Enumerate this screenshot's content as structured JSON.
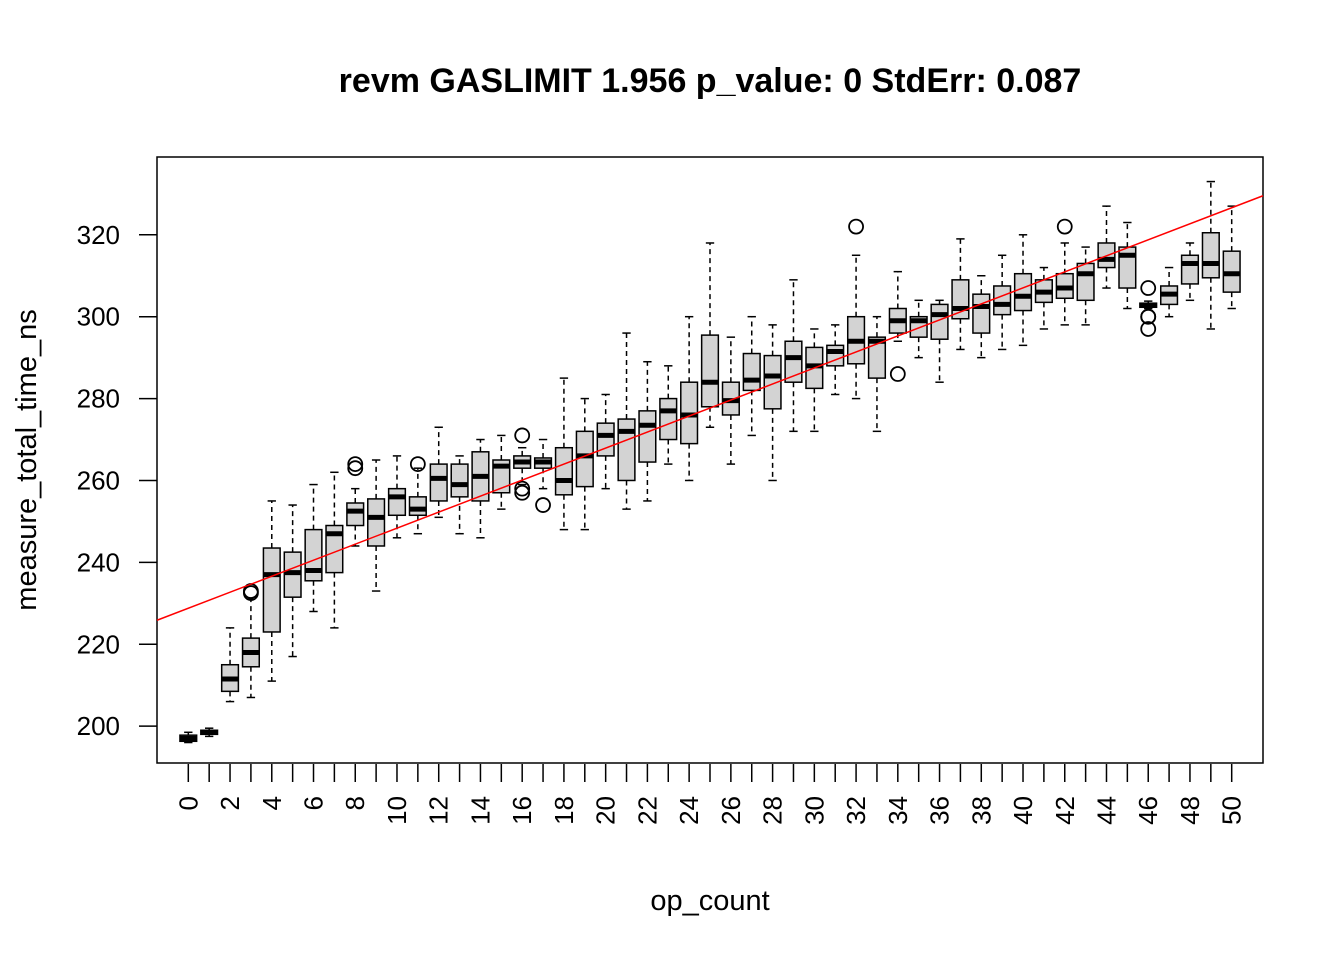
{
  "chart_data": {
    "type": "box",
    "title": "revm GASLIMIT 1.956 p_value: 0 StdErr: 0.087",
    "xlabel": "op_count",
    "ylabel": "measure_total_time_ns",
    "categories": [
      0,
      1,
      2,
      3,
      4,
      5,
      6,
      7,
      8,
      9,
      10,
      11,
      12,
      13,
      14,
      15,
      16,
      17,
      18,
      19,
      20,
      21,
      22,
      23,
      24,
      25,
      26,
      27,
      28,
      29,
      30,
      31,
      32,
      33,
      34,
      35,
      36,
      37,
      38,
      39,
      40,
      41,
      42,
      43,
      44,
      45,
      46,
      47,
      48,
      49,
      50
    ],
    "x_tick_labels": [
      "0",
      "2",
      "4",
      "6",
      "8",
      "10",
      "12",
      "14",
      "16",
      "18",
      "20",
      "22",
      "24",
      "26",
      "28",
      "30",
      "32",
      "34",
      "36",
      "38",
      "40",
      "42",
      "44",
      "46",
      "48",
      "50"
    ],
    "y_ticks": [
      200,
      220,
      240,
      260,
      280,
      300,
      320
    ],
    "ylim": [
      191,
      339
    ],
    "xlim": [
      -1.5,
      51.5
    ],
    "box_fill": "#d3d3d3",
    "regression_color": "#ff0000",
    "regression": {
      "slope": 1.956,
      "intercept": 228.8
    },
    "boxes": [
      {
        "x": 0,
        "wl": 196,
        "q1": 196.3,
        "med": 197,
        "q3": 197.8,
        "wh": 198.5,
        "out": []
      },
      {
        "x": 1,
        "wl": 197.5,
        "q1": 198,
        "med": 198.5,
        "q3": 199,
        "wh": 199.5,
        "out": []
      },
      {
        "x": 2,
        "wl": 206,
        "q1": 208.5,
        "med": 211.5,
        "q3": 215,
        "wh": 224,
        "out": []
      },
      {
        "x": 3,
        "wl": 207,
        "q1": 214.5,
        "med": 218,
        "q3": 221.5,
        "wh": 231,
        "out": [
          233,
          232.5
        ]
      },
      {
        "x": 4,
        "wl": 211,
        "q1": 223,
        "med": 237,
        "q3": 243.5,
        "wh": 255,
        "out": []
      },
      {
        "x": 5,
        "wl": 217,
        "q1": 231.5,
        "med": 237.5,
        "q3": 242.5,
        "wh": 254,
        "out": []
      },
      {
        "x": 6,
        "wl": 228,
        "q1": 235.5,
        "med": 238,
        "q3": 248,
        "wh": 259,
        "out": []
      },
      {
        "x": 7,
        "wl": 224,
        "q1": 237.5,
        "med": 247,
        "q3": 249,
        "wh": 262,
        "out": []
      },
      {
        "x": 8,
        "wl": 244,
        "q1": 249,
        "med": 252.5,
        "q3": 254.5,
        "wh": 258,
        "out": [
          263,
          264
        ]
      },
      {
        "x": 9,
        "wl": 233,
        "q1": 244,
        "med": 251,
        "q3": 255.5,
        "wh": 265,
        "out": []
      },
      {
        "x": 10,
        "wl": 246,
        "q1": 251.5,
        "med": 256,
        "q3": 258,
        "wh": 266,
        "out": []
      },
      {
        "x": 11,
        "wl": 247,
        "q1": 251.5,
        "med": 253,
        "q3": 256,
        "wh": 263,
        "out": [
          264
        ]
      },
      {
        "x": 12,
        "wl": 251,
        "q1": 255,
        "med": 260.5,
        "q3": 264,
        "wh": 273,
        "out": []
      },
      {
        "x": 13,
        "wl": 247,
        "q1": 256,
        "med": 259,
        "q3": 264,
        "wh": 266,
        "out": []
      },
      {
        "x": 14,
        "wl": 246,
        "q1": 255,
        "med": 261,
        "q3": 267,
        "wh": 270,
        "out": []
      },
      {
        "x": 15,
        "wl": 253,
        "q1": 257,
        "med": 263.5,
        "q3": 265,
        "wh": 271,
        "out": []
      },
      {
        "x": 16,
        "wl": 259,
        "q1": 263,
        "med": 264.5,
        "q3": 266,
        "wh": 268,
        "out": [
          271,
          258,
          257
        ]
      },
      {
        "x": 17,
        "wl": 258,
        "q1": 263,
        "med": 264.5,
        "q3": 265.5,
        "wh": 270,
        "out": [
          254
        ]
      },
      {
        "x": 18,
        "wl": 248,
        "q1": 256.5,
        "med": 260,
        "q3": 268,
        "wh": 285,
        "out": []
      },
      {
        "x": 19,
        "wl": 248,
        "q1": 258.5,
        "med": 266,
        "q3": 272,
        "wh": 280,
        "out": []
      },
      {
        "x": 20,
        "wl": 258,
        "q1": 266,
        "med": 271,
        "q3": 274,
        "wh": 281,
        "out": []
      },
      {
        "x": 21,
        "wl": 253,
        "q1": 260,
        "med": 272,
        "q3": 275,
        "wh": 296,
        "out": []
      },
      {
        "x": 22,
        "wl": 255,
        "q1": 264.5,
        "med": 273.5,
        "q3": 277,
        "wh": 289,
        "out": []
      },
      {
        "x": 23,
        "wl": 264,
        "q1": 270,
        "med": 277,
        "q3": 280,
        "wh": 288,
        "out": []
      },
      {
        "x": 24,
        "wl": 260,
        "q1": 269,
        "med": 276,
        "q3": 284,
        "wh": 300,
        "out": []
      },
      {
        "x": 25,
        "wl": 273,
        "q1": 278,
        "med": 284,
        "q3": 295.5,
        "wh": 318,
        "out": []
      },
      {
        "x": 26,
        "wl": 264,
        "q1": 276,
        "med": 279.5,
        "q3": 284,
        "wh": 295,
        "out": []
      },
      {
        "x": 27,
        "wl": 271,
        "q1": 282,
        "med": 284.5,
        "q3": 291,
        "wh": 300,
        "out": []
      },
      {
        "x": 28,
        "wl": 260,
        "q1": 277.5,
        "med": 285.5,
        "q3": 290.5,
        "wh": 298,
        "out": []
      },
      {
        "x": 29,
        "wl": 272,
        "q1": 284,
        "med": 290,
        "q3": 294,
        "wh": 309,
        "out": []
      },
      {
        "x": 30,
        "wl": 272,
        "q1": 282.5,
        "med": 288,
        "q3": 292.5,
        "wh": 297,
        "out": []
      },
      {
        "x": 31,
        "wl": 281,
        "q1": 288,
        "med": 291.5,
        "q3": 293,
        "wh": 298,
        "out": []
      },
      {
        "x": 32,
        "wl": 280,
        "q1": 288.5,
        "med": 294,
        "q3": 300,
        "wh": 315,
        "out": [
          322
        ]
      },
      {
        "x": 33,
        "wl": 272,
        "q1": 285,
        "med": 294,
        "q3": 295,
        "wh": 300,
        "out": []
      },
      {
        "x": 34,
        "wl": 294,
        "q1": 296,
        "med": 299,
        "q3": 302,
        "wh": 311,
        "out": [
          286
        ]
      },
      {
        "x": 35,
        "wl": 290,
        "q1": 295,
        "med": 299,
        "q3": 300,
        "wh": 304,
        "out": []
      },
      {
        "x": 36,
        "wl": 284,
        "q1": 294.5,
        "med": 300.5,
        "q3": 303,
        "wh": 304,
        "out": []
      },
      {
        "x": 37,
        "wl": 292,
        "q1": 299.5,
        "med": 302,
        "q3": 309,
        "wh": 319,
        "out": []
      },
      {
        "x": 38,
        "wl": 290,
        "q1": 296,
        "med": 302.5,
        "q3": 305.5,
        "wh": 310,
        "out": []
      },
      {
        "x": 39,
        "wl": 292,
        "q1": 300.5,
        "med": 303,
        "q3": 307.5,
        "wh": 315,
        "out": []
      },
      {
        "x": 40,
        "wl": 293,
        "q1": 301.5,
        "med": 305,
        "q3": 310.5,
        "wh": 320,
        "out": []
      },
      {
        "x": 41,
        "wl": 297,
        "q1": 303.5,
        "med": 306,
        "q3": 309,
        "wh": 312,
        "out": []
      },
      {
        "x": 42,
        "wl": 298,
        "q1": 304.5,
        "med": 307,
        "q3": 310.5,
        "wh": 318,
        "out": [
          322
        ]
      },
      {
        "x": 43,
        "wl": 298,
        "q1": 304,
        "med": 310.5,
        "q3": 313,
        "wh": 317,
        "out": []
      },
      {
        "x": 44,
        "wl": 307,
        "q1": 312,
        "med": 314,
        "q3": 318,
        "wh": 327,
        "out": []
      },
      {
        "x": 45,
        "wl": 302,
        "q1": 307,
        "med": 315,
        "q3": 317,
        "wh": 323,
        "out": []
      },
      {
        "x": 46,
        "wl": 302,
        "q1": 302.3,
        "med": 302.8,
        "q3": 303.3,
        "wh": 303.8,
        "out": [
          307,
          300,
          300,
          297
        ]
      },
      {
        "x": 47,
        "wl": 300,
        "q1": 303,
        "med": 305.5,
        "q3": 307.5,
        "wh": 312,
        "out": []
      },
      {
        "x": 48,
        "wl": 304,
        "q1": 308,
        "med": 313,
        "q3": 315,
        "wh": 318,
        "out": []
      },
      {
        "x": 49,
        "wl": 297,
        "q1": 309.5,
        "med": 313,
        "q3": 320.5,
        "wh": 333,
        "out": []
      },
      {
        "x": 50,
        "wl": 302,
        "q1": 306,
        "med": 310.5,
        "q3": 316,
        "wh": 327,
        "out": []
      }
    ]
  }
}
